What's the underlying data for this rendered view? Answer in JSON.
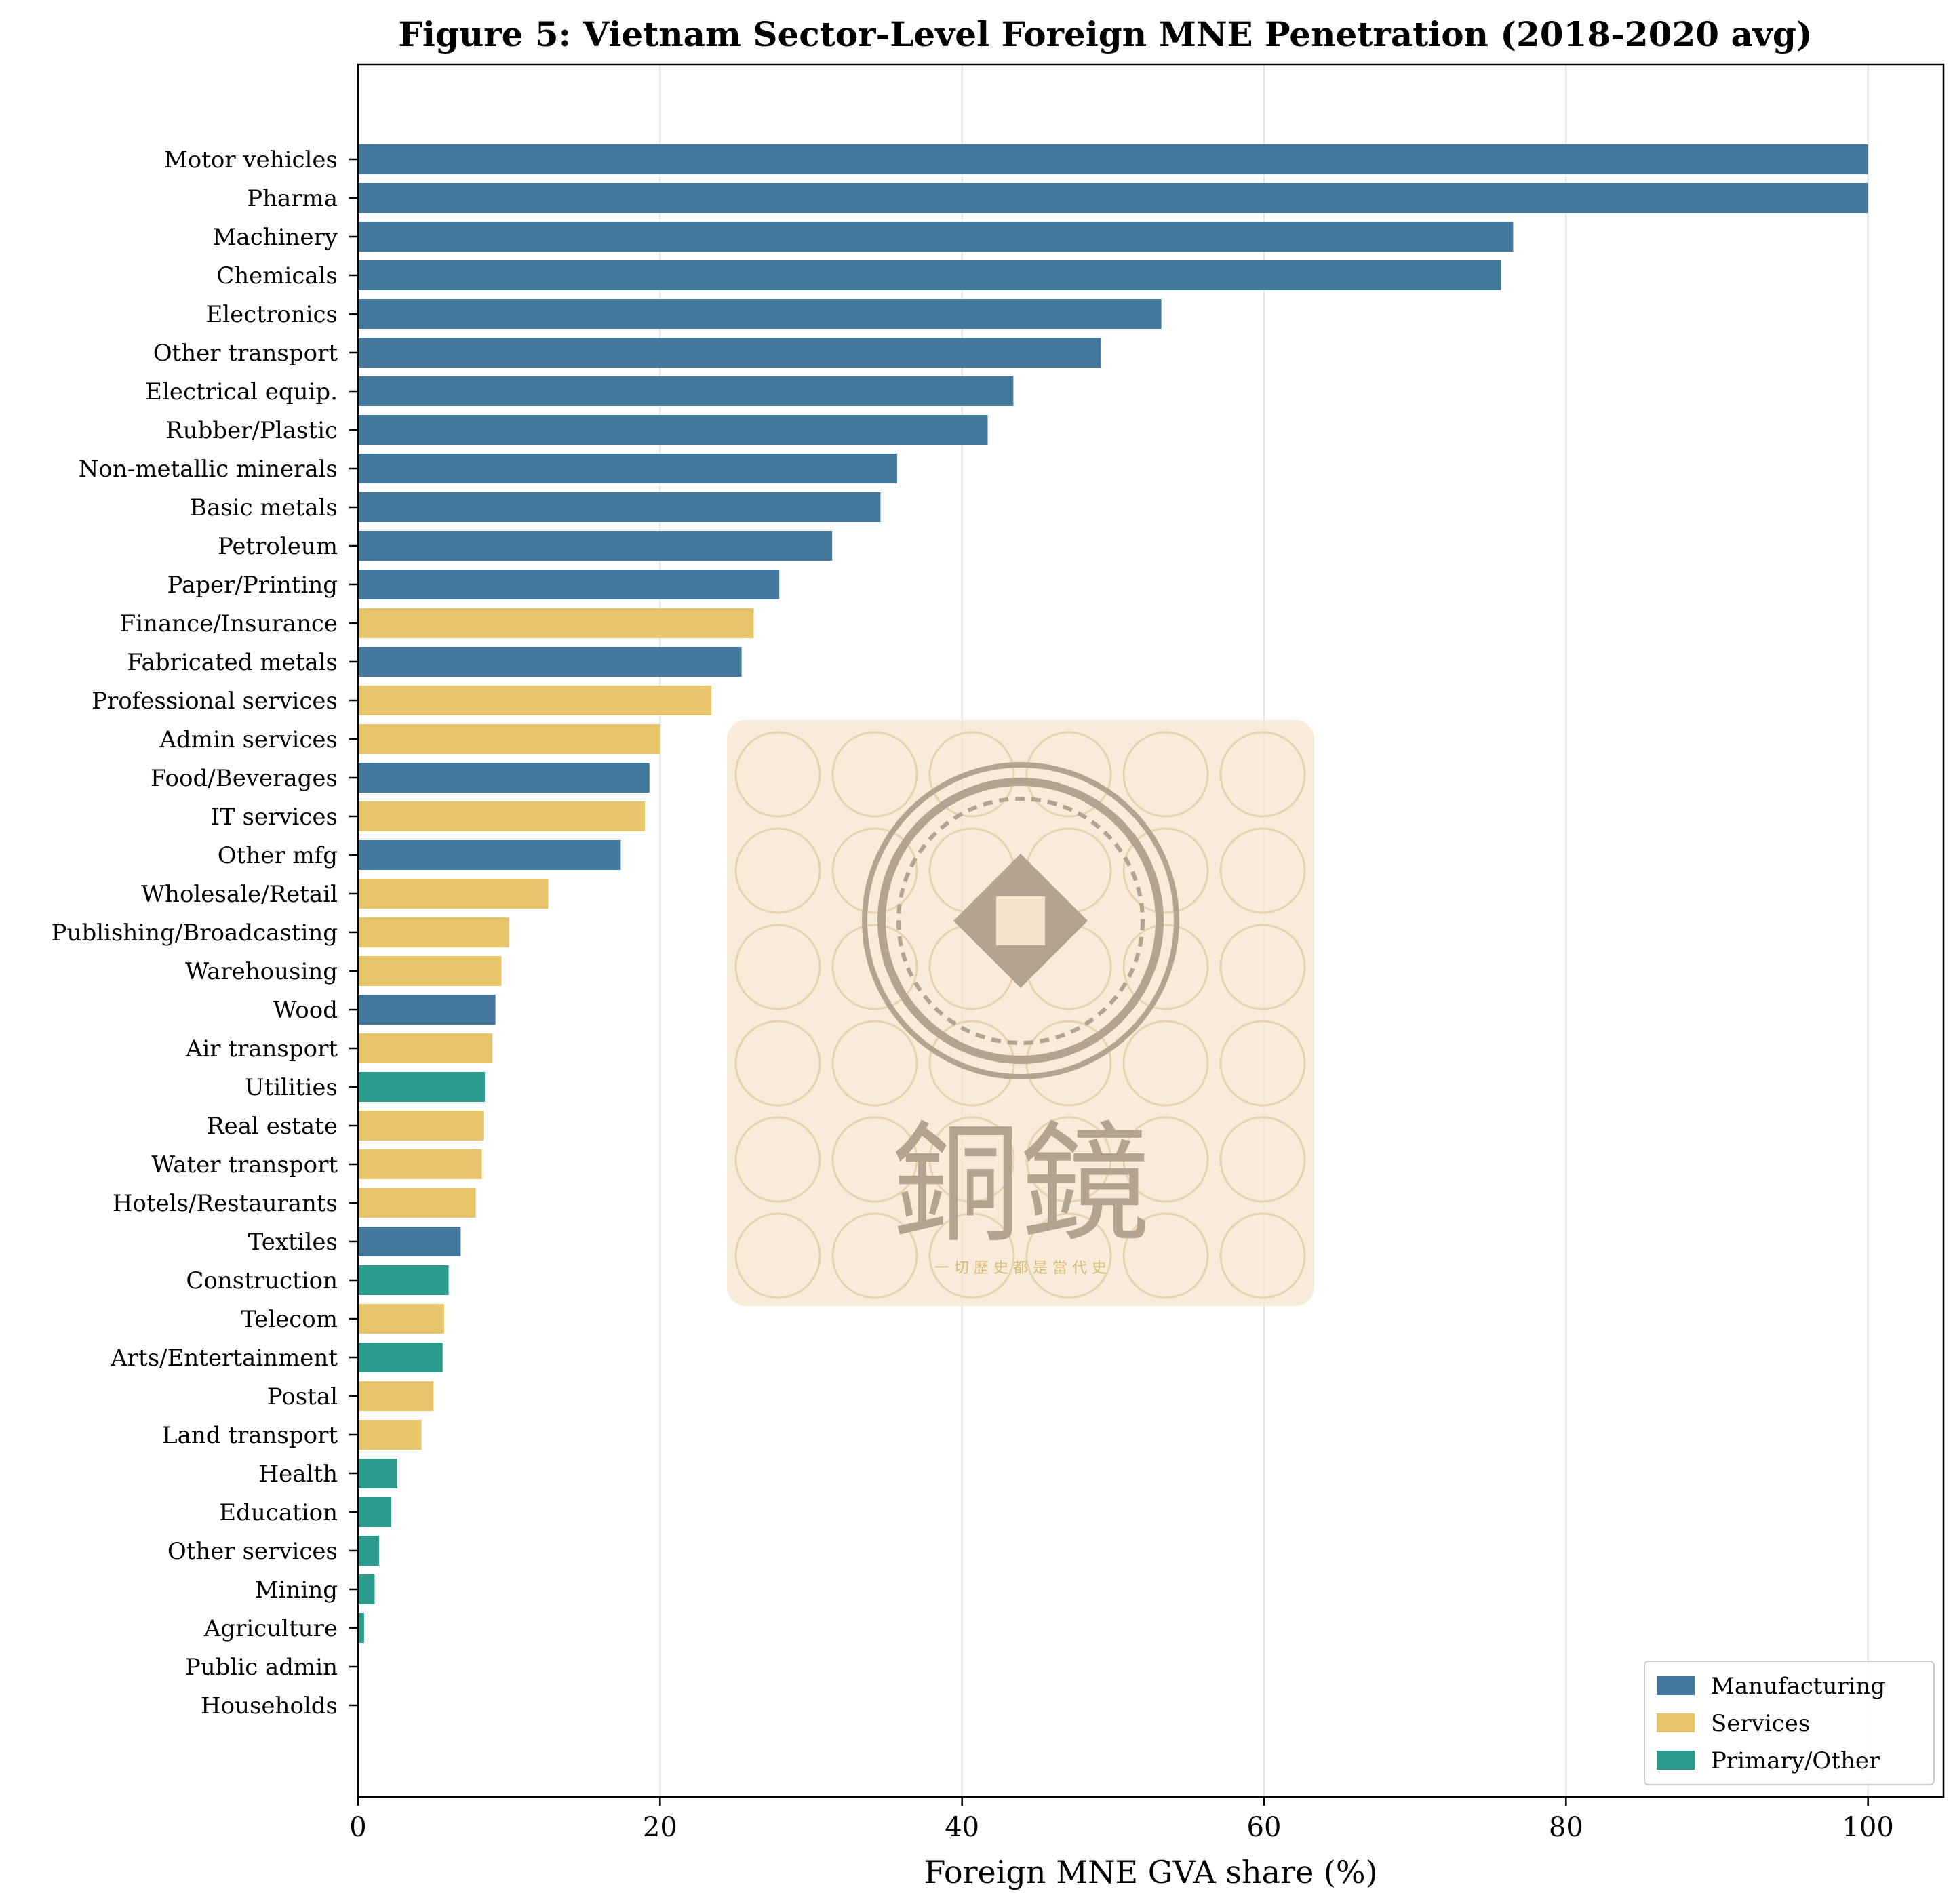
{
  "chart_data": {
    "type": "bar",
    "orientation": "horizontal",
    "title": "Figure 5: Vietnam Sector-Level Foreign MNE Penetration (2018-2020 avg)",
    "xlabel": "Foreign MNE GVA share (%)",
    "ylabel": "",
    "xlim": [
      0,
      105
    ],
    "xticks": [
      0,
      20,
      40,
      60,
      80,
      100
    ],
    "grid": "vertical",
    "legend_position": "lower-right",
    "legend": [
      {
        "label": "Manufacturing",
        "color": "#44789c"
      },
      {
        "label": "Services",
        "color": "#e8c46a"
      },
      {
        "label": "Primary/Other",
        "color": "#2a9b8c"
      }
    ],
    "bars": [
      {
        "label": "Motor vehicles",
        "value": 100.0,
        "group": "Manufacturing"
      },
      {
        "label": "Pharma",
        "value": 100.0,
        "group": "Manufacturing"
      },
      {
        "label": "Machinery",
        "value": 76.5,
        "group": "Manufacturing"
      },
      {
        "label": "Chemicals",
        "value": 75.7,
        "group": "Manufacturing"
      },
      {
        "label": "Electronics",
        "value": 53.2,
        "group": "Manufacturing"
      },
      {
        "label": "Other transport",
        "value": 49.2,
        "group": "Manufacturing"
      },
      {
        "label": "Electrical equip.",
        "value": 43.4,
        "group": "Manufacturing"
      },
      {
        "label": "Rubber/Plastic",
        "value": 41.7,
        "group": "Manufacturing"
      },
      {
        "label": "Non-metallic minerals",
        "value": 35.7,
        "group": "Manufacturing"
      },
      {
        "label": "Basic metals",
        "value": 34.6,
        "group": "Manufacturing"
      },
      {
        "label": "Petroleum",
        "value": 31.4,
        "group": "Manufacturing"
      },
      {
        "label": "Paper/Printing",
        "value": 27.9,
        "group": "Manufacturing"
      },
      {
        "label": "Finance/Insurance",
        "value": 26.2,
        "group": "Services"
      },
      {
        "label": "Fabricated metals",
        "value": 25.4,
        "group": "Manufacturing"
      },
      {
        "label": "Professional services",
        "value": 23.4,
        "group": "Services"
      },
      {
        "label": "Admin services",
        "value": 20.0,
        "group": "Services"
      },
      {
        "label": "Food/Beverages",
        "value": 19.3,
        "group": "Manufacturing"
      },
      {
        "label": "IT services",
        "value": 19.0,
        "group": "Services"
      },
      {
        "label": "Other mfg",
        "value": 17.4,
        "group": "Manufacturing"
      },
      {
        "label": "Wholesale/Retail",
        "value": 12.6,
        "group": "Services"
      },
      {
        "label": "Publishing/Broadcasting",
        "value": 10.0,
        "group": "Services"
      },
      {
        "label": "Warehousing",
        "value": 9.5,
        "group": "Services"
      },
      {
        "label": "Wood",
        "value": 9.1,
        "group": "Manufacturing"
      },
      {
        "label": "Air transport",
        "value": 8.9,
        "group": "Services"
      },
      {
        "label": "Utilities",
        "value": 8.4,
        "group": "Primary/Other"
      },
      {
        "label": "Real estate",
        "value": 8.3,
        "group": "Services"
      },
      {
        "label": "Water transport",
        "value": 8.2,
        "group": "Services"
      },
      {
        "label": "Hotels/Restaurants",
        "value": 7.8,
        "group": "Services"
      },
      {
        "label": "Textiles",
        "value": 6.8,
        "group": "Manufacturing"
      },
      {
        "label": "Construction",
        "value": 6.0,
        "group": "Primary/Other"
      },
      {
        "label": "Telecom",
        "value": 5.7,
        "group": "Services"
      },
      {
        "label": "Arts/Entertainment",
        "value": 5.6,
        "group": "Primary/Other"
      },
      {
        "label": "Postal",
        "value": 5.0,
        "group": "Services"
      },
      {
        "label": "Land transport",
        "value": 4.2,
        "group": "Services"
      },
      {
        "label": "Health",
        "value": 2.6,
        "group": "Primary/Other"
      },
      {
        "label": "Education",
        "value": 2.2,
        "group": "Primary/Other"
      },
      {
        "label": "Other services",
        "value": 1.4,
        "group": "Primary/Other"
      },
      {
        "label": "Mining",
        "value": 1.1,
        "group": "Primary/Other"
      },
      {
        "label": "Agriculture",
        "value": 0.4,
        "group": "Primary/Other"
      },
      {
        "label": "Public admin",
        "value": 0.0,
        "group": "Primary/Other"
      },
      {
        "label": "Households",
        "value": 0.0,
        "group": "Primary/Other"
      }
    ]
  },
  "watermark": {
    "main_text": "銅鏡",
    "tagline": "一 切 歷 史 都 是 當 代 史"
  }
}
